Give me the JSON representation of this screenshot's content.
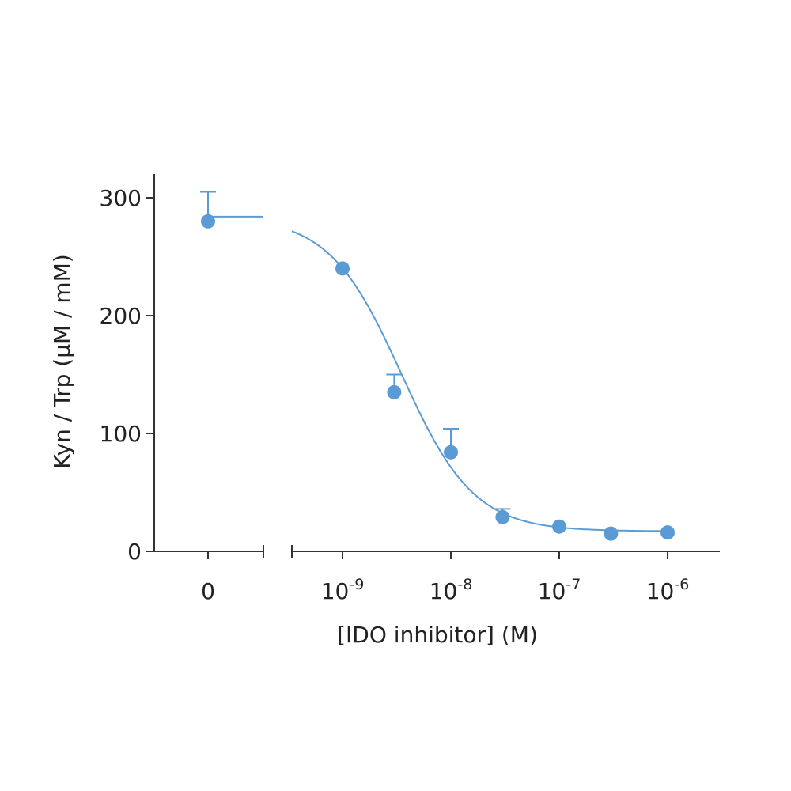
{
  "chart_data": {
    "type": "scatter",
    "title": "",
    "xlabel": "[IDO inhibitor] (M)",
    "ylabel": "Kyn / Trp (µM / mM)",
    "x_scale": "log",
    "x_axis_break": true,
    "ylim": [
      0,
      300
    ],
    "y_ticks": [
      "0",
      "100",
      "200",
      "300"
    ],
    "x_tick_labels": [
      {
        "base": "0",
        "exp": ""
      },
      {
        "base": "10",
        "exp": "-9"
      },
      {
        "base": "10",
        "exp": "-8"
      },
      {
        "base": "10",
        "exp": "-7"
      },
      {
        "base": "10",
        "exp": "-6"
      }
    ],
    "series": [
      {
        "points": [
          {
            "x": 0,
            "y": 280,
            "err": 25
          },
          {
            "x": 1e-09,
            "y": 240,
            "err": 0
          },
          {
            "x": 3e-09,
            "y": 135,
            "err": 15
          },
          {
            "x": 1e-08,
            "y": 84,
            "err": 20
          },
          {
            "x": 3e-08,
            "y": 29,
            "err": 7
          },
          {
            "x": 1e-07,
            "y": 21,
            "err": 0
          },
          {
            "x": 3e-07,
            "y": 15,
            "err": 0
          },
          {
            "x": 1e-06,
            "y": 16,
            "err": 0
          }
        ]
      }
    ],
    "fit": {
      "top": 284,
      "bottom": 17,
      "ic50": 3.5e-09,
      "hill": 1.3
    },
    "grid": false,
    "color": "#5b9bd5"
  }
}
